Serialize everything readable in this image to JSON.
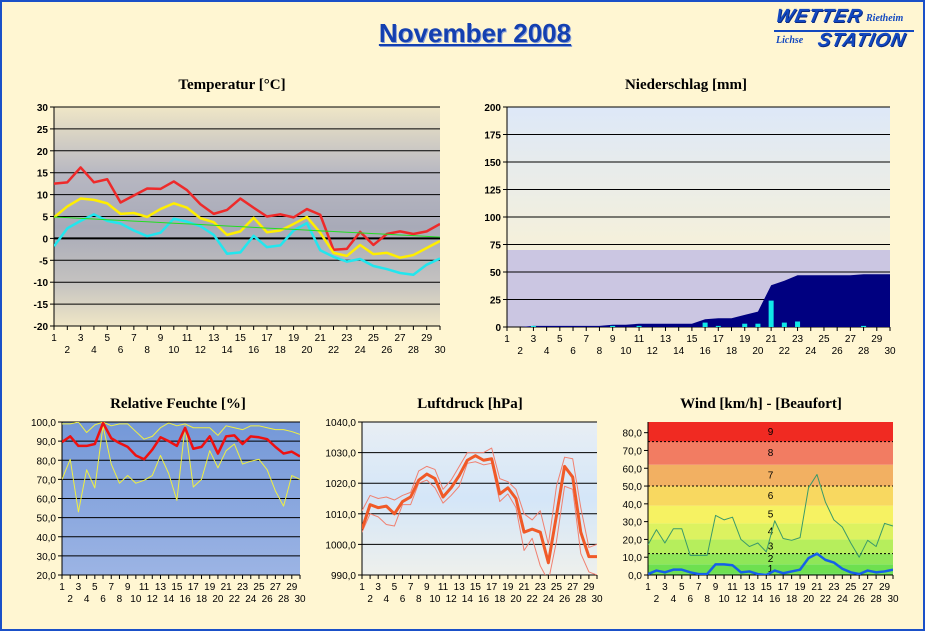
{
  "header": {
    "title": "November 2008",
    "logo": {
      "word1": "WETTER",
      "word2": "STATION",
      "place": "Rietheim",
      "owner": "Lichse",
      "color": "#1248c0"
    }
  },
  "chart_data": [
    {
      "id": "temperature",
      "type": "line",
      "title": "Temperatur [°C]",
      "categories": [
        1,
        2,
        3,
        4,
        5,
        6,
        7,
        8,
        9,
        10,
        11,
        12,
        13,
        14,
        15,
        16,
        17,
        18,
        19,
        20,
        21,
        22,
        23,
        24,
        25,
        26,
        27,
        28,
        29,
        30
      ],
      "ylim": [
        -20,
        30
      ],
      "yticks": [
        "30",
        "25",
        "20",
        "15",
        "10",
        "5",
        "0",
        "-5",
        "-10",
        "-15",
        "-20"
      ],
      "ytick_values": [
        30,
        25,
        20,
        15,
        10,
        5,
        0,
        -5,
        -10,
        -15,
        -20
      ],
      "grid": true,
      "series": [
        {
          "color": "#ee2a2a",
          "values": [
            12.5,
            12.8,
            16.2,
            12.8,
            13.5,
            8.2,
            9.8,
            11.4,
            11.3,
            13,
            11,
            7.8,
            5.6,
            6.5,
            9.1,
            7,
            5,
            5.5,
            4.8,
            6.7,
            5.4,
            -2.6,
            -2.4,
            1.5,
            -1.5,
            1,
            1.6,
            1,
            1.6,
            3.3
          ]
        },
        {
          "color": "#ffee00",
          "values": [
            4.8,
            7.3,
            9.1,
            8.8,
            8,
            5.6,
            5.8,
            4.9,
            6.7,
            8,
            7,
            4.6,
            3.7,
            0.8,
            1.6,
            4.7,
            1.4,
            1.8,
            3.3,
            4.9,
            1.3,
            -3.3,
            -4,
            -1.5,
            -3.6,
            -3.3,
            -4.4,
            -3.8,
            -2.2,
            -0.6
          ]
        },
        {
          "color": "#22e6ee",
          "values": [
            -1.8,
            2.3,
            4,
            5.5,
            4,
            3.4,
            1.8,
            0.5,
            1.3,
            4.5,
            3.8,
            2.8,
            0.8,
            -3.5,
            -3.2,
            0.6,
            -2,
            -1.6,
            1.8,
            3.5,
            -2.7,
            -4.2,
            -5.3,
            -4.7,
            -6.3,
            -7,
            -7.9,
            -8.3,
            -6,
            -4.6
          ]
        },
        {
          "color": "#22dd22",
          "values": [
            4.9,
            4.74,
            4.58,
            4.42,
            4.27,
            4.11,
            3.95,
            3.79,
            3.63,
            3.47,
            3.31,
            3.16,
            3.0,
            2.84,
            2.68,
            2.52,
            2.36,
            2.2,
            2.05,
            1.89,
            1.73,
            1.57,
            1.41,
            1.25,
            1.09,
            0.94,
            0.78,
            0.62,
            0.46,
            0.3
          ]
        }
      ]
    },
    {
      "id": "precipitation",
      "type": "bar",
      "title": "Niederschlag [mm]",
      "categories": [
        1,
        2,
        3,
        4,
        5,
        6,
        7,
        8,
        9,
        10,
        11,
        12,
        13,
        14,
        15,
        16,
        17,
        18,
        19,
        20,
        21,
        22,
        23,
        24,
        25,
        26,
        27,
        28,
        29,
        30
      ],
      "ylim": [
        0,
        200
      ],
      "yticks": [
        "200",
        "175",
        "150",
        "125",
        "100",
        "75",
        "50",
        "25",
        "0"
      ],
      "ytick_values": [
        200,
        175,
        150,
        125,
        100,
        75,
        50,
        25,
        0
      ],
      "grid": true,
      "series": [
        {
          "kind": "area",
          "color": "#000080",
          "values": [
            0,
            0,
            1,
            1,
            1,
            1,
            1,
            1,
            2,
            2,
            3,
            3,
            3,
            3,
            3,
            7,
            8,
            8,
            11,
            14,
            38,
            42,
            47,
            47,
            47,
            47,
            47,
            48,
            48,
            48
          ]
        },
        {
          "kind": "bar",
          "color": "#10e8e8",
          "values": [
            0,
            0,
            1,
            0,
            0,
            0,
            0,
            0,
            1,
            0,
            1,
            0,
            0,
            0,
            0,
            4,
            1,
            0,
            3,
            3,
            24,
            4,
            5,
            0,
            0,
            0,
            0,
            1,
            0,
            0
          ]
        }
      ]
    },
    {
      "id": "humidity",
      "type": "line",
      "title": "Relative Feuchte [%]",
      "categories": [
        1,
        2,
        3,
        4,
        5,
        6,
        7,
        8,
        9,
        10,
        11,
        12,
        13,
        14,
        15,
        16,
        17,
        18,
        19,
        20,
        21,
        22,
        23,
        24,
        25,
        26,
        27,
        28,
        29,
        30
      ],
      "ylim": [
        20,
        100
      ],
      "yticks": [
        "100,0",
        "90,0",
        "80,0",
        "70,0",
        "60,0",
        "50,0",
        "40,0",
        "30,0",
        "20,0"
      ],
      "ytick_values": [
        100,
        90,
        80,
        70,
        60,
        50,
        40,
        30,
        20
      ],
      "grid": true,
      "series": [
        {
          "color": "#f0f040",
          "values": [
            99,
            99,
            100,
            94.5,
            98.5,
            100,
            98,
            99,
            99,
            95,
            91,
            92.5,
            97,
            99.5,
            98,
            99,
            97,
            97,
            97,
            93,
            98,
            97,
            96,
            98,
            98,
            97,
            96,
            96,
            95,
            93.5
          ]
        },
        {
          "color": "#f0f040",
          "values": [
            70,
            80.5,
            53,
            75,
            65.5,
            98,
            78,
            68,
            72,
            68,
            69.5,
            72,
            82.5,
            73,
            59,
            98,
            66,
            70,
            85,
            76,
            85,
            88.5,
            78,
            79.5,
            80.5,
            75,
            64,
            56,
            72,
            70
          ]
        },
        {
          "color": "#ee1111",
          "values": [
            89.5,
            92.5,
            87.5,
            87.5,
            88.5,
            99.5,
            91.5,
            89,
            87,
            82.5,
            80.5,
            85.5,
            92,
            90,
            87.5,
            97,
            86,
            87,
            92.5,
            83.5,
            92.5,
            93,
            88.5,
            92.5,
            92,
            91,
            87,
            83.5,
            84.5,
            82
          ]
        }
      ]
    },
    {
      "id": "pressure",
      "type": "line",
      "title": "Luftdruck [hPa]",
      "categories": [
        1,
        2,
        3,
        4,
        5,
        6,
        7,
        8,
        9,
        10,
        11,
        12,
        13,
        14,
        15,
        16,
        17,
        18,
        19,
        20,
        21,
        22,
        23,
        24,
        25,
        26,
        27,
        28,
        29,
        30
      ],
      "ylim": [
        990,
        1040
      ],
      "yticks": [
        "1040,0",
        "1030,0",
        "1020,0",
        "1010,0",
        "1000,0",
        "990,0"
      ],
      "ytick_values": [
        1040,
        1030,
        1020,
        1010,
        1000,
        990
      ],
      "grid": true,
      "series": [
        {
          "color": "#f08070",
          "values": [
            1011,
            1016,
            1015,
            1015.5,
            1014.5,
            1016,
            1017,
            1024,
            1025.5,
            1024.5,
            1018,
            1021,
            1025.5,
            1030,
            1030,
            1030,
            1031.5,
            1021.5,
            1020.5,
            1018,
            1010,
            1008,
            1011,
            1000,
            1019,
            1028.5,
            1028,
            1012,
            999,
            1000
          ]
        },
        {
          "color": "#f08070",
          "values": [
            1004,
            1010,
            1009,
            1006.5,
            1006,
            1013,
            1013,
            1020,
            1021,
            1018.5,
            1013.5,
            1016,
            1019,
            1026.5,
            1027,
            1026,
            1026.5,
            1014,
            1016.5,
            1012,
            998,
            1002,
            993,
            988,
            1001,
            1019,
            1018,
            997,
            991,
            990
          ]
        },
        {
          "color": "#f05a28",
          "values": [
            1005,
            1013,
            1012,
            1012.5,
            1010,
            1014,
            1015.5,
            1021,
            1023,
            1021.5,
            1015.5,
            1018.5,
            1022.5,
            1027.5,
            1029,
            1027.5,
            1028,
            1016.5,
            1018.5,
            1015,
            1004,
            1005,
            1004,
            994,
            1009.5,
            1025.5,
            1022,
            1004,
            996,
            996
          ]
        }
      ]
    },
    {
      "id": "wind",
      "type": "line",
      "title": "Wind [km/h] - [Beaufort]",
      "categories": [
        1,
        2,
        3,
        4,
        5,
        6,
        7,
        8,
        9,
        10,
        11,
        12,
        13,
        14,
        15,
        16,
        17,
        18,
        19,
        20,
        21,
        22,
        23,
        24,
        25,
        26,
        27,
        28,
        29,
        30
      ],
      "ylim": [
        0,
        86
      ],
      "yticks": [
        "80,0",
        "70,0",
        "60,0",
        "50,0",
        "40,0",
        "30,0",
        "20,0",
        "10,0",
        "0,0"
      ],
      "ytick_values": [
        80,
        70,
        60,
        50,
        40,
        30,
        20,
        10,
        0
      ],
      "grid": false,
      "reference_lines": [
        12,
        50,
        75
      ],
      "beaufort_bands": [
        {
          "label": "",
          "from": 0,
          "to": 1,
          "color": "#5cdc4c"
        },
        {
          "label": "1",
          "from": 1,
          "to": 6,
          "color": "#6ee050"
        },
        {
          "label": "2",
          "from": 6,
          "to": 12,
          "color": "#90e658"
        },
        {
          "label": "3",
          "from": 12,
          "to": 20,
          "color": "#b6ee5c"
        },
        {
          "label": "4",
          "from": 20,
          "to": 29,
          "color": "#dcf260"
        },
        {
          "label": "5",
          "from": 29,
          "to": 39,
          "color": "#f6f262"
        },
        {
          "label": "6",
          "from": 39,
          "to": 50,
          "color": "#f8d860"
        },
        {
          "label": "7",
          "from": 50,
          "to": 62,
          "color": "#f2b062"
        },
        {
          "label": "8",
          "from": 62,
          "to": 75,
          "color": "#f27c62"
        },
        {
          "label": "9",
          "from": 75,
          "to": 86,
          "color": "#f02a22"
        }
      ],
      "series": [
        {
          "color": "#3a9a6a",
          "values": [
            17,
            25.5,
            18,
            26,
            26,
            11,
            11,
            11,
            33.5,
            31,
            32.5,
            20,
            16,
            18,
            13,
            30.5,
            20.5,
            19.5,
            21,
            49,
            56.5,
            41,
            31,
            27,
            18,
            10,
            19.5,
            16,
            29,
            27.5
          ]
        },
        {
          "color": "#1560e8",
          "values": [
            0.5,
            2.5,
            1.5,
            3,
            3,
            1.5,
            0.5,
            0.5,
            6,
            6,
            5.5,
            1.5,
            2,
            0.5,
            0,
            2.5,
            1,
            2,
            3,
            9.5,
            12,
            8.5,
            7,
            3.5,
            1.5,
            0.5,
            2.5,
            1.5,
            2,
            3
          ]
        }
      ]
    }
  ]
}
